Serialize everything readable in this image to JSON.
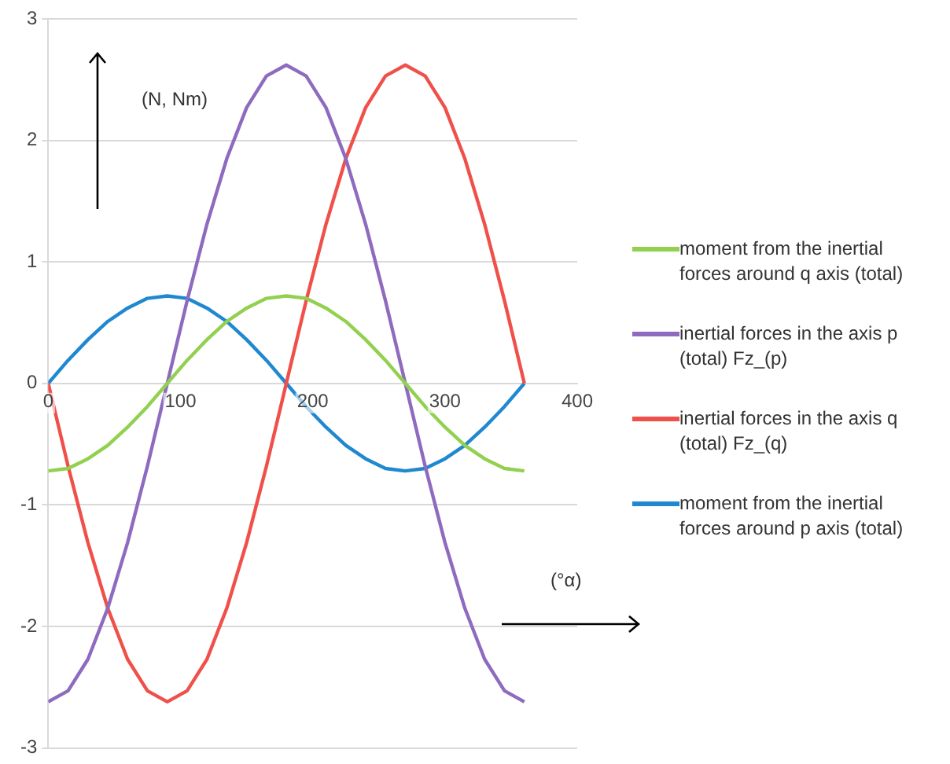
{
  "chart_data": {
    "type": "line",
    "xlabel": "(°α)",
    "ylabel": "(N, Nm)",
    "x": [
      0,
      15,
      30,
      45,
      60,
      75,
      90,
      105,
      120,
      135,
      150,
      165,
      180,
      195,
      210,
      225,
      240,
      255,
      270,
      285,
      300,
      315,
      330,
      345,
      360
    ],
    "series": [
      {
        "name": "moment from the inertial forces around q axis (total)",
        "color": "#92d050",
        "values": [
          -0.72,
          -0.7,
          -0.62,
          -0.51,
          -0.36,
          -0.19,
          0,
          0.19,
          0.36,
          0.51,
          0.62,
          0.7,
          0.72,
          0.7,
          0.62,
          0.51,
          0.36,
          0.19,
          0,
          -0.19,
          -0.36,
          -0.51,
          -0.62,
          -0.7,
          -0.72
        ]
      },
      {
        "name": "inertial forces in the axis p (total)  Fz_(p)",
        "color": "#8e6bbf",
        "values": [
          -2.62,
          -2.53,
          -2.27,
          -1.85,
          -1.31,
          -0.68,
          0,
          0.68,
          1.31,
          1.85,
          2.27,
          2.53,
          2.62,
          2.53,
          2.27,
          1.85,
          1.31,
          0.68,
          0,
          -0.68,
          -1.31,
          -1.85,
          -2.27,
          -2.53,
          -2.62
        ]
      },
      {
        "name": "inertial forces in the axis q (total)  Fz_(q)",
        "color": "#f0504a",
        "values": [
          0,
          -0.68,
          -1.31,
          -1.85,
          -2.27,
          -2.53,
          -2.62,
          -2.53,
          -2.27,
          -1.85,
          -1.31,
          -0.68,
          0,
          0.68,
          1.31,
          1.85,
          2.27,
          2.53,
          2.62,
          2.53,
          2.27,
          1.85,
          1.31,
          0.68,
          0
        ]
      },
      {
        "name": "moment from the inertial forces around p axis (total)",
        "color": "#1f88d0",
        "values": [
          0,
          0.19,
          0.36,
          0.51,
          0.62,
          0.7,
          0.72,
          0.7,
          0.62,
          0.51,
          0.36,
          0.19,
          0,
          -0.19,
          -0.36,
          -0.51,
          -0.62,
          -0.7,
          -0.72,
          -0.7,
          -0.62,
          -0.51,
          -0.36,
          -0.19,
          0
        ]
      }
    ],
    "xlim": [
      0,
      400
    ],
    "xticks": [
      0,
      100,
      200,
      300,
      400
    ],
    "ylim": [
      -3,
      3
    ],
    "yticks": [
      -3,
      -2,
      -1,
      0,
      1,
      2,
      3
    ],
    "grid": "y",
    "legend": "right",
    "marker": "none",
    "line_style": "solid"
  }
}
